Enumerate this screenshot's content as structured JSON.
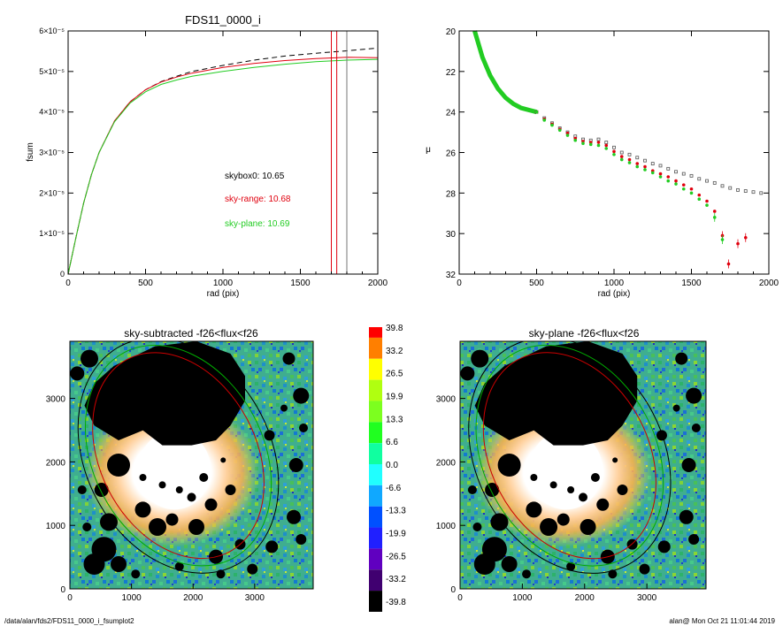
{
  "footer": {
    "path": "/data/alan/fds2/FDS11_0000_i_fsumplot2",
    "stamp": "alan@  Mon Oct 21 11:01:44 2019"
  },
  "chart_data": [
    {
      "type": "line",
      "title": "FDS11_0000_i",
      "xlabel": "rad (pix)",
      "ylabel": "fsum",
      "xlim": [
        0,
        2000
      ],
      "ylim": [
        0,
        6e-05
      ],
      "xticks": [
        "0",
        "500",
        "1000",
        "1500",
        "2000"
      ],
      "yticks": [
        "0",
        "1×10⁻⁵",
        "2×10⁻⁵",
        "3×10⁻⁵",
        "4×10⁻⁵",
        "5×10⁻⁵",
        "6×10⁻⁵"
      ],
      "yticks_values": [
        0,
        1e-05,
        2e-05,
        3e-05,
        4e-05,
        5e-05,
        6e-05
      ],
      "annotations": [
        {
          "text": "skybox0: 10.65",
          "color": "#000000"
        },
        {
          "text": "sky-range: 10.68",
          "color": "#e0000e"
        },
        {
          "text": "sky-plane: 10.69",
          "color": "#22cc22"
        }
      ],
      "vlines": [
        {
          "x": 1700,
          "color": "#e0000e"
        },
        {
          "x": 1735,
          "color": "#e0000e"
        },
        {
          "x": 1800,
          "color": "#777777"
        }
      ],
      "series": [
        {
          "color": "#000000",
          "dash": true,
          "x": [
            0,
            25,
            50,
            100,
            150,
            200,
            300,
            400,
            500,
            600,
            700,
            800,
            1000,
            1200,
            1400,
            1600,
            1800,
            2000
          ],
          "y": [
            0,
            4.5e-06,
            9e-06,
            1.75e-05,
            2.45e-05,
            3e-05,
            3.78e-05,
            4.25e-05,
            4.55e-05,
            4.75e-05,
            4.88e-05,
            5e-05,
            5.15e-05,
            5.28e-05,
            5.38e-05,
            5.45e-05,
            5.51e-05,
            5.58e-05
          ]
        },
        {
          "color": "#e0000e",
          "dash": false,
          "x": [
            0,
            25,
            50,
            100,
            150,
            200,
            300,
            400,
            500,
            600,
            700,
            800,
            1000,
            1200,
            1400,
            1600,
            1800,
            2000
          ],
          "y": [
            0,
            4.5e-06,
            9e-06,
            1.75e-05,
            2.45e-05,
            3e-05,
            3.78e-05,
            4.25e-05,
            4.55e-05,
            4.74e-05,
            4.86e-05,
            4.96e-05,
            5.1e-05,
            5.2e-05,
            5.27e-05,
            5.32e-05,
            5.35e-05,
            5.34e-05
          ]
        },
        {
          "color": "#22cc22",
          "dash": false,
          "x": [
            0,
            25,
            50,
            100,
            150,
            200,
            300,
            400,
            500,
            600,
            700,
            800,
            1000,
            1200,
            1400,
            1600,
            1800,
            2000
          ],
          "y": [
            0,
            4.5e-06,
            9e-06,
            1.75e-05,
            2.45e-05,
            3e-05,
            3.76e-05,
            4.22e-05,
            4.5e-05,
            4.68e-05,
            4.79e-05,
            4.88e-05,
            5e-05,
            5.1e-05,
            5.18e-05,
            5.24e-05,
            5.28e-05,
            5.3e-05
          ]
        }
      ]
    },
    {
      "type": "scatter",
      "title": "",
      "xlabel": "rad (pix)",
      "ylabel": "μ",
      "xlim": [
        0,
        2000
      ],
      "ylim": [
        32,
        20
      ],
      "xticks": [
        "0",
        "500",
        "1000",
        "1500",
        "2000"
      ],
      "yticks": [
        "20",
        "22",
        "24",
        "26",
        "28",
        "30",
        "32"
      ],
      "series": [
        {
          "color": "#555555",
          "marker": "square",
          "x": [
            500,
            550,
            600,
            650,
            700,
            750,
            800,
            850,
            900,
            950,
            1000,
            1050,
            1100,
            1150,
            1200,
            1250,
            1300,
            1350,
            1400,
            1450,
            1500,
            1550,
            1600,
            1650,
            1700,
            1750,
            1800,
            1850,
            1900,
            1950
          ],
          "y": [
            24.0,
            24.3,
            24.55,
            24.8,
            25.0,
            25.2,
            25.35,
            25.4,
            25.35,
            25.5,
            25.75,
            26.0,
            26.1,
            26.25,
            26.4,
            26.55,
            26.65,
            26.8,
            26.95,
            27.05,
            27.15,
            27.3,
            27.4,
            27.5,
            27.65,
            27.75,
            27.85,
            27.9,
            27.95,
            28.0
          ]
        },
        {
          "color": "#e0000e",
          "marker": "dot",
          "x": [
            500,
            550,
            600,
            650,
            700,
            750,
            800,
            850,
            900,
            950,
            1000,
            1050,
            1100,
            1150,
            1200,
            1250,
            1300,
            1350,
            1400,
            1450,
            1500,
            1550,
            1600,
            1650,
            1700,
            1740,
            1800,
            1850
          ],
          "y": [
            24.0,
            24.35,
            24.6,
            24.85,
            25.05,
            25.3,
            25.45,
            25.5,
            25.5,
            25.65,
            25.95,
            26.2,
            26.35,
            26.55,
            26.7,
            26.9,
            27.05,
            27.2,
            27.4,
            27.6,
            27.8,
            28.1,
            28.4,
            28.9,
            30.1,
            31.5,
            30.5,
            30.2
          ]
        },
        {
          "color": "#22cc22",
          "marker": "dot",
          "x": [
            500,
            550,
            600,
            650,
            700,
            750,
            800,
            850,
            900,
            950,
            1000,
            1050,
            1100,
            1150,
            1200,
            1250,
            1300,
            1350,
            1400,
            1450,
            1500,
            1550,
            1600,
            1650,
            1700
          ],
          "y": [
            24.0,
            24.4,
            24.65,
            24.9,
            25.15,
            25.4,
            25.55,
            25.6,
            25.65,
            25.8,
            26.1,
            26.35,
            26.5,
            26.7,
            26.85,
            27.0,
            27.2,
            27.4,
            27.55,
            27.8,
            28.0,
            28.3,
            28.6,
            29.2,
            30.3
          ]
        }
      ],
      "inner_profile": {
        "x": [
          100,
          150,
          200,
          250,
          300,
          350,
          400,
          450,
          500
        ],
        "y": [
          20.0,
          21.3,
          22.2,
          22.85,
          23.3,
          23.6,
          23.8,
          23.9,
          24.0
        ]
      }
    },
    {
      "type": "heatmap",
      "title": "sky-subtracted -f26<flux<f26",
      "xlim": [
        0,
        3950
      ],
      "ylim": [
        0,
        3900
      ],
      "xticks": [
        "0",
        "1000",
        "2000",
        "3000"
      ],
      "yticks": [
        "0",
        "1000",
        "2000",
        "3000"
      ]
    },
    {
      "type": "heatmap",
      "title": "sky-plane -f26<flux<f26",
      "xlim": [
        0,
        3950
      ],
      "ylim": [
        0,
        3900
      ],
      "xticks": [
        "0",
        "1000",
        "2000",
        "3000"
      ],
      "yticks": [
        "0",
        "1000",
        "2000",
        "3000"
      ]
    },
    {
      "type": "colorbar",
      "labels": [
        "39.8",
        "33.2",
        "26.5",
        "19.9",
        "13.3",
        "6.6",
        "0.0",
        "-6.6",
        "-13.3",
        "-19.9",
        "-26.5",
        "-33.2",
        "-39.8"
      ],
      "colors": [
        "#ff0000",
        "#ff7f00",
        "#ffff00",
        "#b0ff10",
        "#7cff1f",
        "#20ff20",
        "#10ffa0",
        "#20ffff",
        "#10a8ff",
        "#0050ff",
        "#2020ff",
        "#6000c0",
        "#400070",
        "#000000"
      ]
    }
  ]
}
